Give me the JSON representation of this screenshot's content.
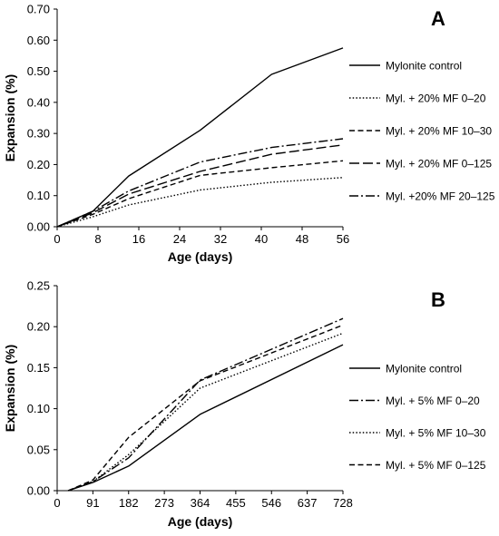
{
  "chart_data": [
    {
      "panel": "A",
      "type": "line",
      "xlabel": "Age (days)",
      "ylabel": "Expansion (%)",
      "xlim": [
        0,
        56
      ],
      "ylim": [
        0,
        0.7
      ],
      "xticks": [
        "0",
        "8",
        "16",
        "24",
        "32",
        "40",
        "48",
        "56"
      ],
      "yticks": [
        "0.00",
        "0.10",
        "0.20",
        "0.30",
        "0.40",
        "0.50",
        "0.60",
        "0.70"
      ],
      "grid": false,
      "legend_placement": "right",
      "series": [
        {
          "name": "Mylonite control",
          "dash": "solid",
          "x": [
            0,
            7,
            14,
            28,
            42,
            56
          ],
          "y": [
            0,
            0.05,
            0.163,
            0.31,
            0.49,
            0.575
          ]
        },
        {
          "name": "Myl. + 20% MF 0–20",
          "dash": "dot",
          "x": [
            0,
            7,
            14,
            28,
            42,
            56
          ],
          "y": [
            0,
            0.032,
            0.07,
            0.118,
            0.143,
            0.158
          ]
        },
        {
          "name": "Myl. + 20% MF 10–30",
          "dash": "dash",
          "x": [
            0,
            7,
            14,
            28,
            42,
            56
          ],
          "y": [
            0,
            0.04,
            0.09,
            0.165,
            0.19,
            0.212
          ]
        },
        {
          "name": "Myl. + 20% MF 0–125",
          "dash": "longdash",
          "x": [
            0,
            7,
            14,
            28,
            42,
            56
          ],
          "y": [
            0,
            0.045,
            0.105,
            0.178,
            0.233,
            0.263
          ]
        },
        {
          "name": "Myl. +20% MF 20–125",
          "dash": "dashdot",
          "x": [
            0,
            7,
            14,
            28,
            42,
            56
          ],
          "y": [
            0,
            0.05,
            0.115,
            0.208,
            0.255,
            0.283
          ]
        }
      ]
    },
    {
      "panel": "B",
      "type": "line",
      "xlabel": "Age (days)",
      "ylabel": "Expansion (%)",
      "xlim": [
        0,
        728
      ],
      "ylim": [
        0,
        0.25
      ],
      "xticks": [
        "0",
        "91",
        "182",
        "273",
        "364",
        "455",
        "546",
        "637",
        "728"
      ],
      "yticks": [
        "0.00",
        "0.05",
        "0.10",
        "0.15",
        "0.20",
        "0.25"
      ],
      "grid": false,
      "legend_placement": "right",
      "series": [
        {
          "name": "Mylonite control",
          "dash": "solid",
          "x": [
            28,
            91,
            182,
            364,
            728
          ],
          "y": [
            0,
            0.01,
            0.03,
            0.093,
            0.178
          ]
        },
        {
          "name": "Myl. + 5% MF 0–20",
          "dash": "dashdot",
          "x": [
            28,
            91,
            182,
            364,
            728
          ],
          "y": [
            0,
            0.011,
            0.04,
            0.135,
            0.21
          ]
        },
        {
          "name": "Myl. + 5% MF 10–30",
          "dash": "dot",
          "x": [
            28,
            91,
            182,
            364,
            728
          ],
          "y": [
            0,
            0.011,
            0.044,
            0.125,
            0.192
          ]
        },
        {
          "name": "Myl. + 5% MF 0–125",
          "dash": "dash",
          "x": [
            28,
            91,
            182,
            364,
            728
          ],
          "y": [
            0,
            0.013,
            0.065,
            0.134,
            0.202
          ]
        }
      ]
    }
  ]
}
